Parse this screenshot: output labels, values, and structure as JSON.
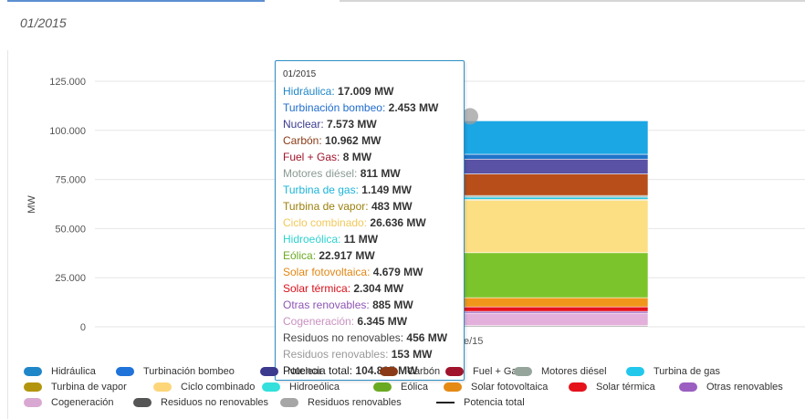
{
  "period": "01/2015",
  "chart_data": {
    "type": "bar",
    "stacked": true,
    "categories": [
      "ene/15"
    ],
    "ylabel": "MW",
    "ylim": [
      0,
      137500
    ],
    "yticks": [
      "0",
      "25.000",
      "50.000",
      "75.000",
      "100.000",
      "125.000"
    ],
    "ytick_values": [
      0,
      25000,
      50000,
      75000,
      100000,
      125000
    ],
    "grid": true,
    "category_label_visible": "e/15",
    "series": [
      {
        "name": "Hidráulica",
        "value": 17009,
        "color": "#1ba6e4"
      },
      {
        "name": "Turbinación bombeo",
        "value": 2453,
        "color": "#1f73c9"
      },
      {
        "name": "Nuclear",
        "value": 7573,
        "color": "#5a52a4"
      },
      {
        "name": "Carbón",
        "value": 10962,
        "color": "#b84f1a"
      },
      {
        "name": "Fuel + Gas",
        "value": 8,
        "color": "#a0142c"
      },
      {
        "name": "Motores diésel",
        "value": 811,
        "color": "#93a59a"
      },
      {
        "name": "Turbina de gas",
        "value": 1149,
        "color": "#27c6e6"
      },
      {
        "name": "Turbina de vapor",
        "value": 483,
        "color": "#b89810"
      },
      {
        "name": "Ciclo combinado",
        "value": 26636,
        "color": "#fddf83"
      },
      {
        "name": "Hidroeólica",
        "value": 11,
        "color": "#33e0dc"
      },
      {
        "name": "Eólica",
        "value": 22917,
        "color": "#7cc42b"
      },
      {
        "name": "Solar fotovoltaica",
        "value": 4679,
        "color": "#f0961a"
      },
      {
        "name": "Solar térmica",
        "value": 2304,
        "color": "#e5121c"
      },
      {
        "name": "Otras renovables",
        "value": 885,
        "color": "#9a5fc0"
      },
      {
        "name": "Cogeneración",
        "value": 6345,
        "color": "#e2b0da"
      },
      {
        "name": "Residuos no renovables",
        "value": 456,
        "color": "#5b5b5b"
      },
      {
        "name": "Residuos renovables",
        "value": 153,
        "color": "#a6a6a6"
      },
      {
        "name": "Potencia total",
        "value": 104835,
        "color": "#222222"
      }
    ]
  },
  "tooltip": {
    "title": "01/2015",
    "rows": [
      {
        "label": "Hidráulica",
        "value": "17.009 MW",
        "color": "#1f86c8"
      },
      {
        "label": "Turbinación bombeo",
        "value": "2.453 MW",
        "color": "#1f6ccd"
      },
      {
        "label": "Nuclear",
        "value": "7.573 MW",
        "color": "#3b3a8e"
      },
      {
        "label": "Carbón",
        "value": "10.962 MW",
        "color": "#8a3a16"
      },
      {
        "label": "Fuel + Gas",
        "value": "8 MW",
        "color": "#a0142c"
      },
      {
        "label": "Motores diésel",
        "value": "811 MW",
        "color": "#8a9b92"
      },
      {
        "label": "Turbina de gas",
        "value": "1.149 MW",
        "color": "#1bb4d8"
      },
      {
        "label": "Turbina de vapor",
        "value": "483 MW",
        "color": "#9b7f0b"
      },
      {
        "label": "Ciclo combinado",
        "value": "26.636 MW",
        "color": "#f2c85a"
      },
      {
        "label": "Hidroeólica",
        "value": "11 MW",
        "color": "#2cd2d0"
      },
      {
        "label": "Eólica",
        "value": "22.917 MW",
        "color": "#6aaa22"
      },
      {
        "label": "Solar fotovoltaica",
        "value": "4.679 MW",
        "color": "#e08714"
      },
      {
        "label": "Solar térmica",
        "value": "2.304 MW",
        "color": "#d9101a"
      },
      {
        "label": "Otras renovables",
        "value": "885 MW",
        "color": "#8e55b5"
      },
      {
        "label": "Cogeneración",
        "value": "6.345 MW",
        "color": "#c990c0"
      },
      {
        "label": "Residuos no renovables",
        "value": "456 MW",
        "color": "#444444"
      },
      {
        "label": "Residuos renovables",
        "value": "153 MW",
        "color": "#999999"
      },
      {
        "label": "Potencia total",
        "value": "104.835 MW",
        "color": "#222222"
      }
    ]
  },
  "legend": {
    "rows": [
      [
        {
          "label": "Hidráulica",
          "color": "#1f86c8",
          "line": false
        },
        {
          "label": "Turbinación bombeo",
          "color": "#1f73d9",
          "line": false
        },
        {
          "label": "Nuclear",
          "color": "#3b3a8e",
          "line": false
        },
        {
          "label": "Carbón",
          "color": "#8a3a16",
          "line": false
        },
        {
          "label": "Fuel + Gas",
          "color": "#a0142c",
          "line": false
        },
        {
          "label": "Motores diésel",
          "color": "#95a59c",
          "line": false
        },
        {
          "label": "Turbina de gas",
          "color": "#22c8ec",
          "line": false
        }
      ],
      [
        {
          "label": "Turbina de vapor",
          "color": "#b3940e",
          "line": false
        },
        {
          "label": "Ciclo combinado",
          "color": "#fdd67a",
          "line": false
        },
        {
          "label": "Hidroeólica",
          "color": "#33e0dc",
          "line": false
        },
        {
          "label": "Eólica",
          "color": "#6aaa22",
          "line": false
        },
        {
          "label": "Solar fotovoltaica",
          "color": "#e58a14",
          "line": false
        },
        {
          "label": "Solar térmica",
          "color": "#e5121c",
          "line": false
        },
        {
          "label": "Otras renovables",
          "color": "#9a5fc0",
          "line": false
        }
      ],
      [
        {
          "label": "Cogeneración",
          "color": "#d9a8d2",
          "line": false
        },
        {
          "label": "Residuos no renovables",
          "color": "#555555",
          "line": false
        },
        {
          "label": "Residuos renovables",
          "color": "#a6a6a6",
          "line": false
        },
        {
          "label": "Potencia total",
          "color": "#222222",
          "line": true
        }
      ]
    ]
  }
}
